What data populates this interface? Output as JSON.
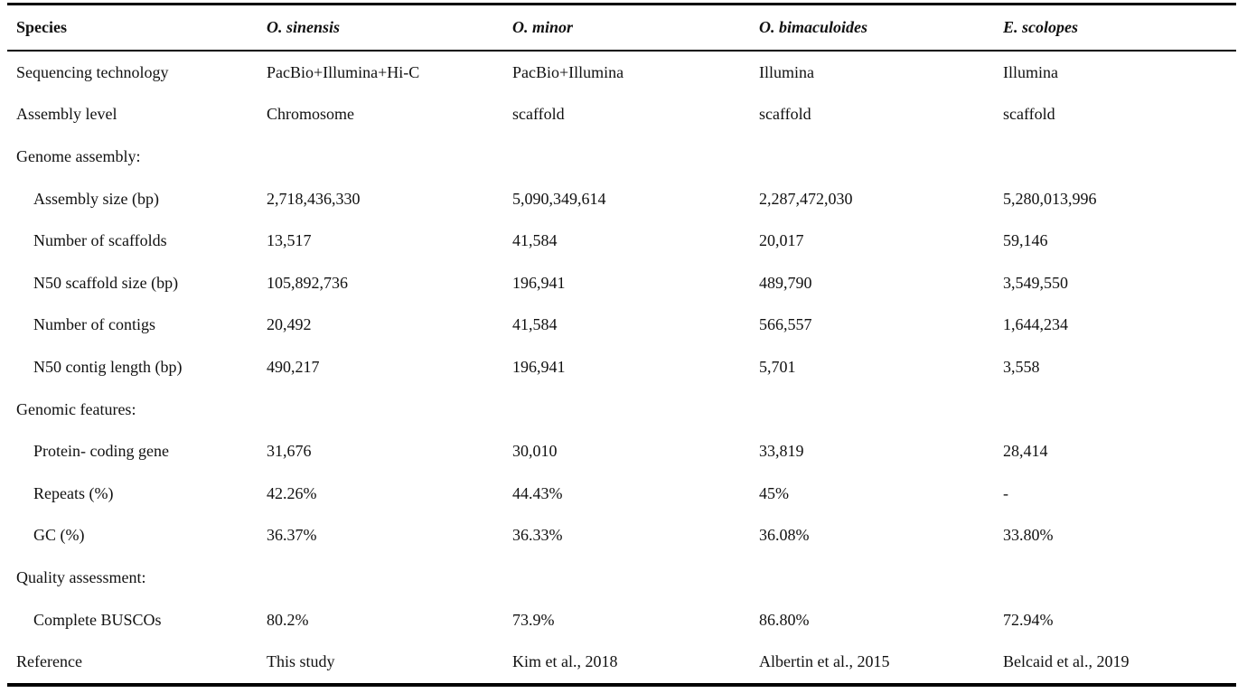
{
  "table": {
    "columns": [
      "Species",
      "O. sinensis",
      "O. minor",
      "O. bimaculoides",
      "E. scolopes"
    ],
    "rows": [
      {
        "label": "Sequencing technology",
        "indent": false,
        "values": [
          "PacBio+Illumina+Hi-C",
          "PacBio+Illumina",
          "Illumina",
          "Illumina"
        ]
      },
      {
        "label": "Assembly level",
        "indent": false,
        "values": [
          "Chromosome",
          "scaffold",
          "scaffold",
          "scaffold"
        ]
      },
      {
        "label": "Genome assembly:",
        "indent": false,
        "values": [
          "",
          "",
          "",
          ""
        ]
      },
      {
        "label": "Assembly size (bp)",
        "indent": true,
        "values": [
          "2,718,436,330",
          "5,090,349,614",
          "2,287,472,030",
          "5,280,013,996"
        ]
      },
      {
        "label": "Number of scaffolds",
        "indent": true,
        "values": [
          "13,517",
          "41,584",
          "20,017",
          "59,146"
        ]
      },
      {
        "label": "N50 scaffold size (bp)",
        "indent": true,
        "values": [
          "105,892,736",
          "196,941",
          "489,790",
          "3,549,550"
        ]
      },
      {
        "label": "Number of contigs",
        "indent": true,
        "values": [
          "20,492",
          "41,584",
          "566,557",
          "1,644,234"
        ]
      },
      {
        "label": "N50 contig length (bp)",
        "indent": true,
        "values": [
          "490,217",
          "196,941",
          "5,701",
          "3,558"
        ]
      },
      {
        "label": "Genomic features:",
        "indent": false,
        "values": [
          "",
          "",
          "",
          ""
        ]
      },
      {
        "label": "Protein- coding gene",
        "indent": true,
        "values": [
          "31,676",
          "30,010",
          "33,819",
          "28,414"
        ]
      },
      {
        "label": "Repeats (%)",
        "indent": true,
        "values": [
          "42.26%",
          "44.43%",
          "45%",
          "-"
        ]
      },
      {
        "label": "GC (%)",
        "indent": true,
        "values": [
          "36.37%",
          "36.33%",
          "36.08%",
          "33.80%"
        ]
      },
      {
        "label": "Quality assessment:",
        "indent": false,
        "values": [
          "",
          "",
          "",
          ""
        ]
      },
      {
        "label": "Complete BUSCOs",
        "indent": true,
        "values": [
          "80.2%",
          "73.9%",
          "86.80%",
          "72.94%"
        ]
      },
      {
        "label": "Reference",
        "indent": false,
        "values": [
          "This study",
          "Kim et al., 2018",
          "Albertin et al., 2015",
          "Belcaid et al., 2019"
        ]
      }
    ],
    "style": {
      "text_color": "#111111",
      "rule_color": "#000000",
      "background": "#ffffff"
    }
  }
}
